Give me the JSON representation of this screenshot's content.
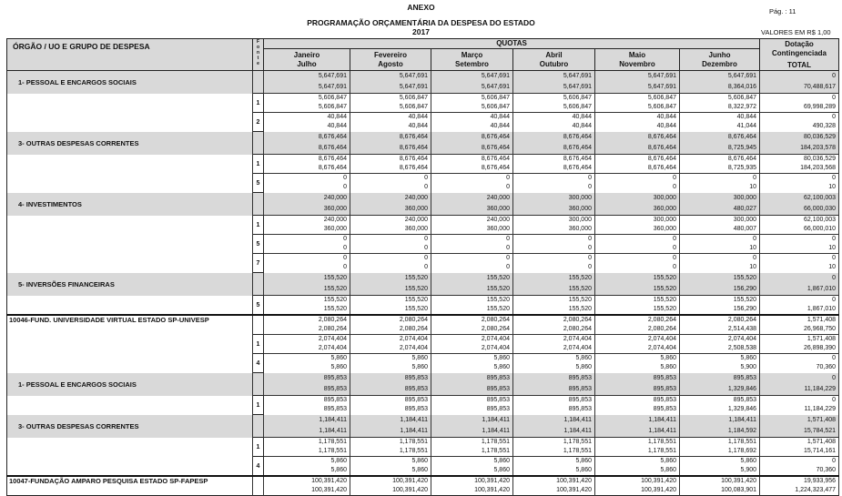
{
  "header": {
    "anexo": "ANEXO",
    "title": "PROGRAMAÇÃO ORÇAMENTÁRIA DA DESPESA DO ESTADO",
    "year": "2017",
    "page_label": "Pág. :  11",
    "units": "VALORES EM R$ 1,00"
  },
  "columns": {
    "orgao": "ÓRGÃO / UO  E GRUPO DE DESPESA",
    "fonte": "F o n t e",
    "quotas": "QUOTAS",
    "months": [
      {
        "top": "Janeiro",
        "bottom": "Julho"
      },
      {
        "top": "Fevereiro",
        "bottom": "Agosto"
      },
      {
        "top": "Março",
        "bottom": "Setembro"
      },
      {
        "top": "Abril",
        "bottom": "Outubro"
      },
      {
        "top": "Maio",
        "bottom": "Novembro"
      },
      {
        "top": "Junho",
        "bottom": "Dezembro"
      }
    ],
    "dotacao_top": "Dotação Contingenciada",
    "dotacao_bottom": "TOTAL"
  },
  "rows": [
    {
      "kind": "group",
      "label": "1- PESSOAL E ENCARGOS SOCIAIS",
      "fonte": "",
      "top": [
        "5,647,691",
        "5,647,691",
        "5,647,691",
        "5,647,691",
        "5,647,691",
        "5,647,691",
        "0"
      ],
      "bottom": [
        "5,647,691",
        "5,647,691",
        "5,647,691",
        "5,647,691",
        "5,647,691",
        "8,364,016",
        "70,488,617"
      ]
    },
    {
      "kind": "fonte",
      "label": "",
      "fonte": "1",
      "top": [
        "5,606,847",
        "5,606,847",
        "5,606,847",
        "5,606,847",
        "5,606,847",
        "5,606,847",
        "0"
      ],
      "bottom": [
        "5,606,847",
        "5,606,847",
        "5,606,847",
        "5,606,847",
        "5,606,847",
        "8,322,972",
        "69,998,289"
      ]
    },
    {
      "kind": "fonte",
      "label": "",
      "fonte": "2",
      "top": [
        "40,844",
        "40,844",
        "40,844",
        "40,844",
        "40,844",
        "40,844",
        "0"
      ],
      "bottom": [
        "40,844",
        "40,844",
        "40,844",
        "40,844",
        "40,844",
        "41,044",
        "490,328"
      ]
    },
    {
      "kind": "group",
      "label": "3- OUTRAS DESPESAS CORRENTES",
      "fonte": "",
      "top": [
        "8,676,464",
        "8,676,464",
        "8,676,464",
        "8,676,464",
        "8,676,464",
        "8,676,464",
        "80,036,529"
      ],
      "bottom": [
        "8,676,464",
        "8,676,464",
        "8,676,464",
        "8,676,464",
        "8,676,464",
        "8,725,945",
        "184,203,578"
      ]
    },
    {
      "kind": "fonte",
      "label": "",
      "fonte": "1",
      "top": [
        "8,676,464",
        "8,676,464",
        "8,676,464",
        "8,676,464",
        "8,676,464",
        "8,676,464",
        "80,036,529"
      ],
      "bottom": [
        "8,676,464",
        "8,676,464",
        "8,676,464",
        "8,676,464",
        "8,676,464",
        "8,725,935",
        "184,203,568"
      ]
    },
    {
      "kind": "fonte",
      "label": "",
      "fonte": "5",
      "top": [
        "0",
        "0",
        "0",
        "0",
        "0",
        "0",
        "0"
      ],
      "bottom": [
        "0",
        "0",
        "0",
        "0",
        "0",
        "10",
        "10"
      ]
    },
    {
      "kind": "group",
      "label": "4- INVESTIMENTOS",
      "fonte": "",
      "top": [
        "240,000",
        "240,000",
        "240,000",
        "300,000",
        "300,000",
        "300,000",
        "62,100,003"
      ],
      "bottom": [
        "360,000",
        "360,000",
        "360,000",
        "360,000",
        "360,000",
        "480,027",
        "66,000,030"
      ]
    },
    {
      "kind": "fonte",
      "label": "",
      "fonte": "1",
      "top": [
        "240,000",
        "240,000",
        "240,000",
        "300,000",
        "300,000",
        "300,000",
        "62,100,003"
      ],
      "bottom": [
        "360,000",
        "360,000",
        "360,000",
        "360,000",
        "360,000",
        "480,007",
        "66,000,010"
      ]
    },
    {
      "kind": "fonte",
      "label": "",
      "fonte": "5",
      "top": [
        "0",
        "0",
        "0",
        "0",
        "0",
        "0",
        "0"
      ],
      "bottom": [
        "0",
        "0",
        "0",
        "0",
        "0",
        "10",
        "10"
      ]
    },
    {
      "kind": "fonte",
      "label": "",
      "fonte": "7",
      "top": [
        "0",
        "0",
        "0",
        "0",
        "0",
        "0",
        "0"
      ],
      "bottom": [
        "0",
        "0",
        "0",
        "0",
        "0",
        "10",
        "10"
      ]
    },
    {
      "kind": "group",
      "label": "5- INVERSÕES FINANCEIRAS",
      "fonte": "",
      "top": [
        "155,520",
        "155,520",
        "155,520",
        "155,520",
        "155,520",
        "155,520",
        "0"
      ],
      "bottom": [
        "155,520",
        "155,520",
        "155,520",
        "155,520",
        "155,520",
        "156,290",
        "1,867,010"
      ]
    },
    {
      "kind": "fonte",
      "label": "",
      "fonte": "5",
      "top": [
        "155,520",
        "155,520",
        "155,520",
        "155,520",
        "155,520",
        "155,520",
        "0"
      ],
      "bottom": [
        "155,520",
        "155,520",
        "155,520",
        "155,520",
        "155,520",
        "156,290",
        "1,867,010"
      ]
    },
    {
      "kind": "org",
      "label": "10046-FUND. UNIVERSIDADE VIRTUAL ESTADO SP-UNIVESP",
      "fonte": "",
      "top": [
        "2,080,264",
        "2,080,264",
        "2,080,264",
        "2,080,264",
        "2,080,264",
        "2,080,264",
        "1,571,408"
      ],
      "bottom": [
        "2,080,264",
        "2,080,264",
        "2,080,264",
        "2,080,264",
        "2,080,264",
        "2,514,438",
        "26,968,750"
      ]
    },
    {
      "kind": "fonte",
      "label": "",
      "fonte": "1",
      "top": [
        "2,074,404",
        "2,074,404",
        "2,074,404",
        "2,074,404",
        "2,074,404",
        "2,074,404",
        "1,571,408"
      ],
      "bottom": [
        "2,074,404",
        "2,074,404",
        "2,074,404",
        "2,074,404",
        "2,074,404",
        "2,508,538",
        "26,898,390"
      ]
    },
    {
      "kind": "fonte",
      "label": "",
      "fonte": "4",
      "top": [
        "5,860",
        "5,860",
        "5,860",
        "5,860",
        "5,860",
        "5,860",
        "0"
      ],
      "bottom": [
        "5,860",
        "5,860",
        "5,860",
        "5,860",
        "5,860",
        "5,900",
        "70,360"
      ]
    },
    {
      "kind": "group",
      "label": "1- PESSOAL E ENCARGOS SOCIAIS",
      "fonte": "",
      "top": [
        "895,853",
        "895,853",
        "895,853",
        "895,853",
        "895,853",
        "895,853",
        "0"
      ],
      "bottom": [
        "895,853",
        "895,853",
        "895,853",
        "895,853",
        "895,853",
        "1,329,846",
        "11,184,229"
      ]
    },
    {
      "kind": "fonte",
      "label": "",
      "fonte": "1",
      "top": [
        "895,853",
        "895,853",
        "895,853",
        "895,853",
        "895,853",
        "895,853",
        "0"
      ],
      "bottom": [
        "895,853",
        "895,853",
        "895,853",
        "895,853",
        "895,853",
        "1,329,846",
        "11,184,229"
      ]
    },
    {
      "kind": "group",
      "label": "3- OUTRAS DESPESAS CORRENTES",
      "fonte": "",
      "top": [
        "1,184,411",
        "1,184,411",
        "1,184,411",
        "1,184,411",
        "1,184,411",
        "1,184,411",
        "1,571,408"
      ],
      "bottom": [
        "1,184,411",
        "1,184,411",
        "1,184,411",
        "1,184,411",
        "1,184,411",
        "1,184,592",
        "15,784,521"
      ]
    },
    {
      "kind": "fonte",
      "label": "",
      "fonte": "1",
      "top": [
        "1,178,551",
        "1,178,551",
        "1,178,551",
        "1,178,551",
        "1,178,551",
        "1,178,551",
        "1,571,408"
      ],
      "bottom": [
        "1,178,551",
        "1,178,551",
        "1,178,551",
        "1,178,551",
        "1,178,551",
        "1,178,692",
        "15,714,161"
      ]
    },
    {
      "kind": "fonte",
      "label": "",
      "fonte": "4",
      "top": [
        "5,860",
        "5,860",
        "5,860",
        "5,860",
        "5,860",
        "5,860",
        "0"
      ],
      "bottom": [
        "5,860",
        "5,860",
        "5,860",
        "5,860",
        "5,860",
        "5,900",
        "70,360"
      ]
    },
    {
      "kind": "org",
      "label": "10047-FUNDAÇÃO AMPARO PESQUISA ESTADO SP-FAPESP",
      "fonte": "",
      "top": [
        "100,391,420",
        "100,391,420",
        "100,391,420",
        "100,391,420",
        "100,391,420",
        "100,391,420",
        "19,933,956"
      ],
      "bottom": [
        "100,391,420",
        "100,391,420",
        "100,391,420",
        "100,391,420",
        "100,391,420",
        "100,083,901",
        "1,224,323,477"
      ]
    }
  ]
}
